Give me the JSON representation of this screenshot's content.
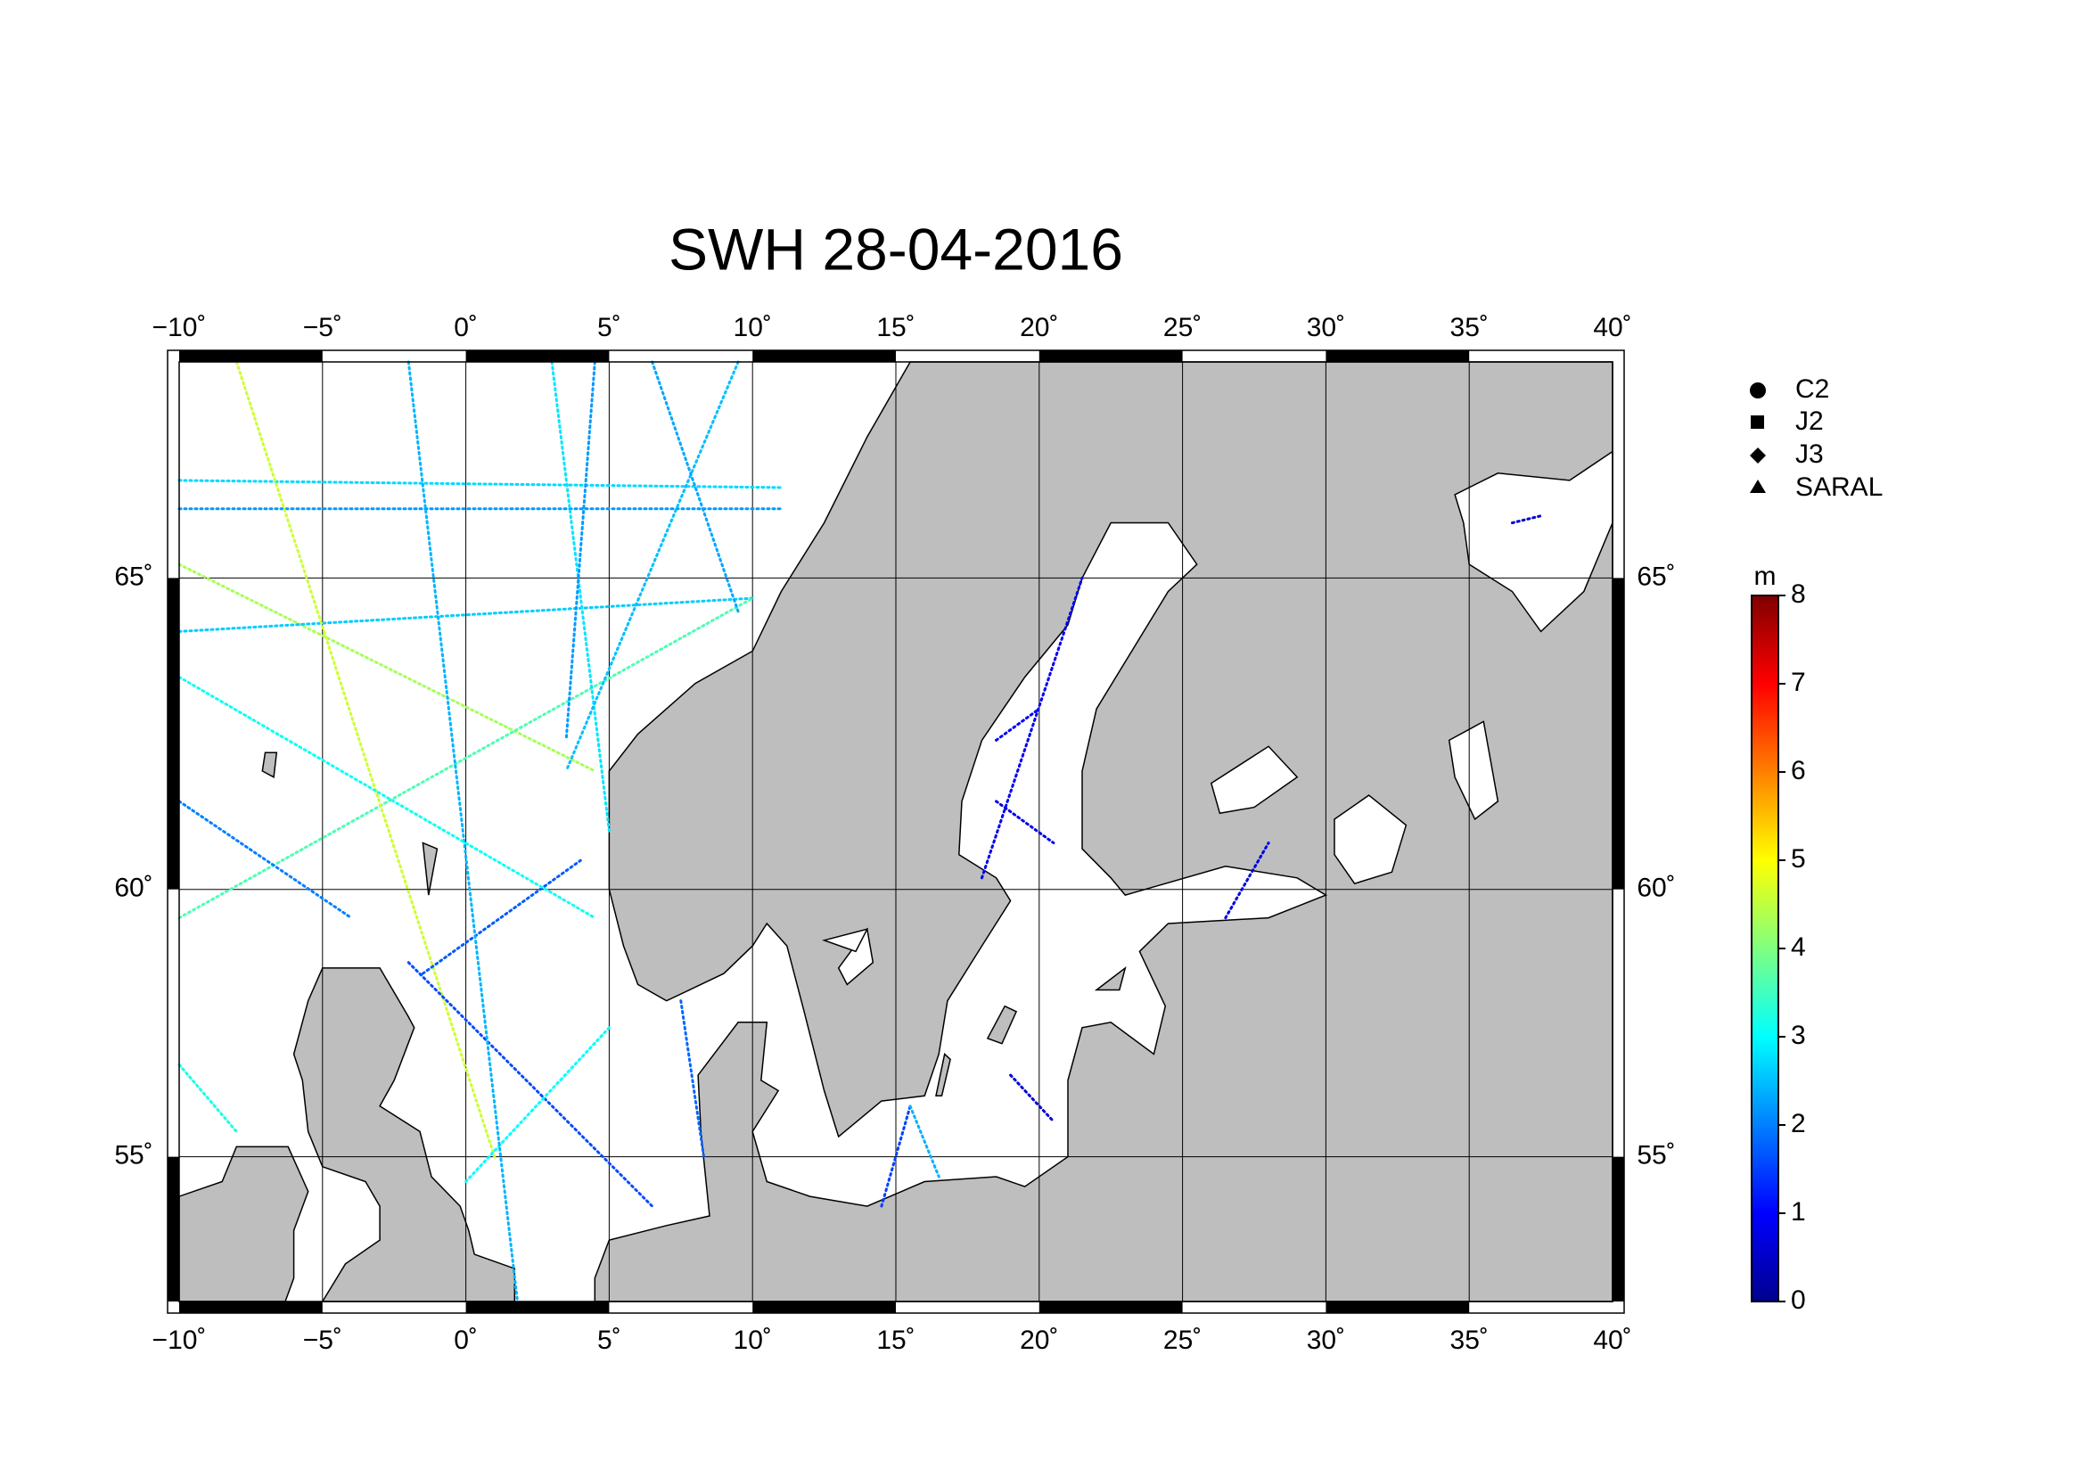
{
  "title": "SWH 28-04-2016",
  "map": {
    "xlim": [
      -10,
      40
    ],
    "ylim": [
      52,
      68
    ],
    "lon_ticks": [
      {
        "value": -10,
        "label": "−10˚"
      },
      {
        "value": -5,
        "label": "−5˚"
      },
      {
        "value": 0,
        "label": "0˚"
      },
      {
        "value": 5,
        "label": "5˚"
      },
      {
        "value": 10,
        "label": "10˚"
      },
      {
        "value": 15,
        "label": "15˚"
      },
      {
        "value": 20,
        "label": "20˚"
      },
      {
        "value": 25,
        "label": "25˚"
      },
      {
        "value": 30,
        "label": "30˚"
      },
      {
        "value": 35,
        "label": "35˚"
      },
      {
        "value": 40,
        "label": "40˚"
      }
    ],
    "lat_ticks": [
      {
        "value": 55,
        "label": "55˚"
      },
      {
        "value": 60,
        "label": "60˚"
      },
      {
        "value": 65,
        "label": "65˚"
      }
    ],
    "tracks": [
      {
        "lon": [
          -10,
          11
        ],
        "lat": [
          66.4,
          66.3
        ],
        "swh": 2.7
      },
      {
        "lon": [
          -10,
          11
        ],
        "lat": [
          66.0,
          66.0
        ],
        "swh": 2.2
      },
      {
        "lon": [
          -10,
          4.5
        ],
        "lat": [
          65.2,
          62
        ],
        "swh": 4.3
      },
      {
        "lon": [
          -10,
          10
        ],
        "lat": [
          64.2,
          64.7
        ],
        "swh": 2.6
      },
      {
        "lon": [
          -10,
          10
        ],
        "lat": [
          59.5,
          64.7
        ],
        "swh": 3.6
      },
      {
        "lon": [
          -8,
          1
        ],
        "lat": [
          68,
          55
        ],
        "swh": 4.6
      },
      {
        "lon": [
          -10,
          -4
        ],
        "lat": [
          61.5,
          59.5
        ],
        "swh": 2.0
      },
      {
        "lon": [
          -2,
          6.5
        ],
        "lat": [
          58.7,
          54
        ],
        "swh": 1.6
      },
      {
        "lon": [
          -1.5,
          4
        ],
        "lat": [
          58.5,
          60.5
        ],
        "swh": 1.7
      },
      {
        "lon": [
          0,
          5
        ],
        "lat": [
          54.5,
          57.5
        ],
        "swh": 3.0
      },
      {
        "lon": [
          -2,
          1.8
        ],
        "lat": [
          68,
          52
        ],
        "swh": 2.4
      },
      {
        "lon": [
          3,
          5
        ],
        "lat": [
          68,
          61
        ],
        "swh": 2.8
      },
      {
        "lon": [
          4.5,
          3.5
        ],
        "lat": [
          68,
          62.5
        ],
        "swh": 2.2
      },
      {
        "lon": [
          9.5,
          3.5
        ],
        "lat": [
          68,
          62
        ],
        "swh": 2.5
      },
      {
        "lon": [
          6.5,
          9.5
        ],
        "lat": [
          68,
          64.5
        ],
        "swh": 2.3
      },
      {
        "lon": [
          -10,
          4.5
        ],
        "lat": [
          63.5,
          59.5
        ],
        "swh": 3.1
      },
      {
        "lon": [
          -10,
          -8
        ],
        "lat": [
          56.8,
          55.5
        ],
        "swh": 3.2
      },
      {
        "lon": [
          7.5,
          8.3
        ],
        "lat": [
          58,
          55
        ],
        "swh": 1.8
      },
      {
        "lon": [
          19,
          20.5
        ],
        "lat": [
          56.6,
          55.7
        ],
        "swh": 0.7
      },
      {
        "lon": [
          18.5,
          20.5
        ],
        "lat": [
          61.5,
          60.8
        ],
        "swh": 0.8
      },
      {
        "lon": [
          18,
          21.5
        ],
        "lat": [
          60.2,
          65
        ],
        "swh": 0.9
      },
      {
        "lon": [
          26.5,
          28
        ],
        "lat": [
          59.5,
          60.8
        ],
        "swh": 0.8
      },
      {
        "lon": [
          36.5,
          37.5
        ],
        "lat": [
          65.8,
          65.9
        ],
        "swh": 0.6
      },
      {
        "lon": [
          14.5,
          15.5
        ],
        "lat": [
          54,
          56
        ],
        "swh": 1.5
      },
      {
        "lon": [
          15.5,
          16.5
        ],
        "lat": [
          56,
          54.6
        ],
        "swh": 2.4
      },
      {
        "lon": [
          18.5,
          20
        ],
        "lat": [
          62.5,
          63
        ],
        "swh": 1.0
      }
    ]
  },
  "legend": {
    "items": [
      "C2",
      "J2",
      "J3",
      "SARAL"
    ]
  },
  "colorbar": {
    "unit": "m",
    "ticks": [
      0,
      1,
      2,
      3,
      4,
      5,
      6,
      7,
      8
    ]
  }
}
